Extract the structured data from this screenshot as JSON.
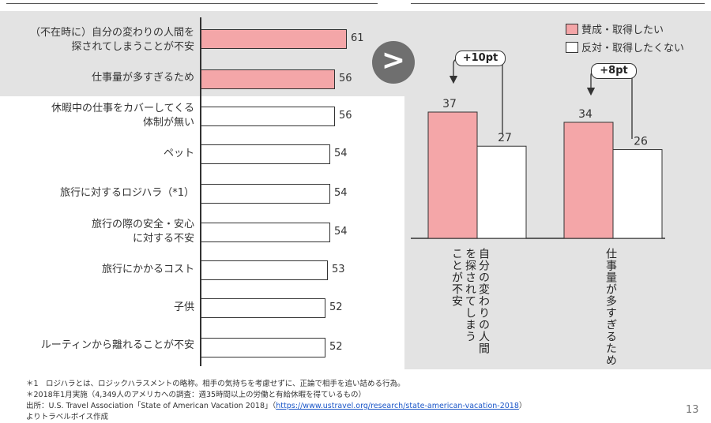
{
  "colors": {
    "highlight": "#f4a6a8",
    "neutral": "#ffffff",
    "panel": "#e3e3e3",
    "link": "#1a56c8"
  },
  "left_chart": {
    "categories": [
      [
        "（不在時に）自分の変わりの人間を",
        "探されてしまうことが不安"
      ],
      [
        "仕事量が多すぎるため"
      ],
      [
        "休暇中の仕事をカバーしてくる",
        "体制が無い"
      ],
      [
        "ペット"
      ],
      [
        "旅行に対するロジハラ（*1）"
      ],
      [
        "旅行の際の安全・安心",
        "に対する不安"
      ],
      [
        "旅行にかかるコスト"
      ],
      [
        "子供"
      ],
      [
        "ルーティンから離れることが不安"
      ]
    ]
  },
  "compare_icon": ">",
  "legend": {
    "agree": "賛成・取得したい",
    "disagree": "反対・取得したくない"
  },
  "right_chart": {
    "groups": [
      {
        "label": "自分の変わりの人間を探されてしまうことが不安",
        "line1": "自分の変わりの人間",
        "line2": "を探されてしまう",
        "line3": "ことが不安",
        "badge": "+10pt"
      },
      {
        "label": "仕事量が多すぎるため",
        "line1": "仕事量が多すぎるため",
        "badge": "+8pt"
      }
    ]
  },
  "chart_data": [
    {
      "type": "bar",
      "orientation": "horizontal",
      "categories": [
        "（不在時に）自分の変わりの人間を探されてしまうことが不安",
        "仕事量が多すぎるため",
        "休暇中の仕事をカバーしてくる体制が無い",
        "ペット",
        "旅行に対するロジハラ（*1）",
        "旅行の際の安全・安心に対する不安",
        "旅行にかかるコスト",
        "子供",
        "ルーティンから離れることが不安"
      ],
      "values": [
        61,
        56,
        56,
        54,
        54,
        54,
        53,
        52,
        52
      ],
      "highlighted": [
        true,
        true,
        false,
        false,
        false,
        false,
        false,
        false,
        false
      ],
      "value_max": 66
    },
    {
      "type": "bar",
      "categories": [
        "自分の変わりの人間を探されてしまうことが不安",
        "仕事量が多すぎるため"
      ],
      "series": [
        {
          "name": "賛成・取得したい",
          "values": [
            37,
            34
          ]
        },
        {
          "name": "反対・取得したくない",
          "values": [
            27,
            26
          ]
        }
      ],
      "ylim": [
        0,
        44
      ]
    }
  ],
  "footnotes": [
    "＊1　ロジハラとは、ロジックハラスメントの略称。相手の気持ちを考慮せずに、正論で相手を追い詰める行為。",
    "＊2018年1月実施（4,349人のアメリカへの調査：週35時間以上の労働と有給休暇を得ているもの）",
    "出所：U.S. Travel Association「State of American Vacation 2018」（",
    "https://www.ustravel.org/research/state-american-vacation-2018",
    "）",
    "よりトラベルボイス作成"
  ],
  "page_number": "13"
}
